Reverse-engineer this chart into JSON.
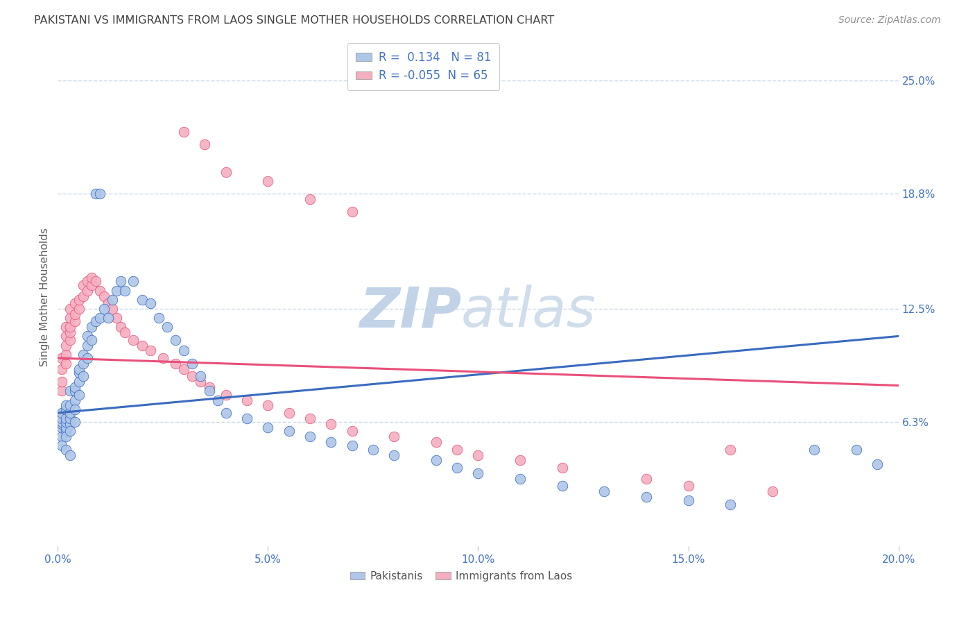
{
  "title": "PAKISTANI VS IMMIGRANTS FROM LAOS SINGLE MOTHER HOUSEHOLDS CORRELATION CHART",
  "source": "Source: ZipAtlas.com",
  "ylabel": "Single Mother Households",
  "xlim": [
    0.0,
    0.2
  ],
  "ylim": [
    -0.005,
    0.268
  ],
  "xtick_labels": [
    "0.0%",
    "5.0%",
    "10.0%",
    "15.0%",
    "20.0%"
  ],
  "xtick_vals": [
    0.0,
    0.05,
    0.1,
    0.15,
    0.2
  ],
  "ytick_labels": [
    "6.3%",
    "12.5%",
    "18.8%",
    "25.0%"
  ],
  "ytick_vals": [
    0.063,
    0.125,
    0.188,
    0.25
  ],
  "blue_color": "#aec6e8",
  "pink_color": "#f4afc0",
  "blue_line_color": "#3a6bbf",
  "pink_line_color": "#e8507a",
  "title_color": "#404040",
  "source_color": "#909090",
  "axis_label_color": "#606060",
  "tick_color": "#4472c4",
  "grid_color": "#c8d8ea",
  "watermark_color": "#ccd8e8",
  "blue_trendline_x": [
    0.0,
    0.2
  ],
  "blue_trendline_y": [
    0.068,
    0.11
  ],
  "pink_trendline_x": [
    0.0,
    0.2
  ],
  "pink_trendline_y": [
    0.098,
    0.083
  ],
  "blue_R": "0.134",
  "blue_N": "81",
  "pink_R": "-0.055",
  "pink_N": "65",
  "blue_points_x": [
    0.001,
    0.001,
    0.001,
    0.001,
    0.001,
    0.001,
    0.001,
    0.002,
    0.002,
    0.002,
    0.002,
    0.002,
    0.002,
    0.002,
    0.002,
    0.003,
    0.003,
    0.003,
    0.003,
    0.003,
    0.003,
    0.003,
    0.004,
    0.004,
    0.004,
    0.004,
    0.004,
    0.005,
    0.005,
    0.005,
    0.005,
    0.006,
    0.006,
    0.006,
    0.007,
    0.007,
    0.007,
    0.008,
    0.008,
    0.009,
    0.009,
    0.01,
    0.01,
    0.011,
    0.012,
    0.013,
    0.014,
    0.015,
    0.016,
    0.018,
    0.02,
    0.022,
    0.024,
    0.026,
    0.028,
    0.03,
    0.032,
    0.034,
    0.036,
    0.038,
    0.04,
    0.045,
    0.05,
    0.055,
    0.06,
    0.065,
    0.07,
    0.075,
    0.08,
    0.09,
    0.095,
    0.1,
    0.11,
    0.12,
    0.13,
    0.14,
    0.15,
    0.16,
    0.18,
    0.19,
    0.195
  ],
  "blue_points_y": [
    0.055,
    0.06,
    0.062,
    0.063,
    0.065,
    0.068,
    0.05,
    0.058,
    0.06,
    0.063,
    0.065,
    0.07,
    0.072,
    0.055,
    0.048,
    0.062,
    0.065,
    0.068,
    0.072,
    0.08,
    0.058,
    0.045,
    0.075,
    0.08,
    0.082,
    0.07,
    0.063,
    0.085,
    0.09,
    0.092,
    0.078,
    0.095,
    0.1,
    0.088,
    0.105,
    0.11,
    0.098,
    0.115,
    0.108,
    0.188,
    0.118,
    0.188,
    0.12,
    0.125,
    0.12,
    0.13,
    0.135,
    0.14,
    0.135,
    0.14,
    0.13,
    0.128,
    0.12,
    0.115,
    0.108,
    0.102,
    0.095,
    0.088,
    0.08,
    0.075,
    0.068,
    0.065,
    0.06,
    0.058,
    0.055,
    0.052,
    0.05,
    0.048,
    0.045,
    0.042,
    0.038,
    0.035,
    0.032,
    0.028,
    0.025,
    0.022,
    0.02,
    0.018,
    0.048,
    0.048,
    0.04
  ],
  "pink_points_x": [
    0.001,
    0.001,
    0.001,
    0.001,
    0.002,
    0.002,
    0.002,
    0.002,
    0.002,
    0.003,
    0.003,
    0.003,
    0.003,
    0.003,
    0.004,
    0.004,
    0.004,
    0.005,
    0.005,
    0.006,
    0.006,
    0.007,
    0.007,
    0.008,
    0.008,
    0.009,
    0.01,
    0.011,
    0.012,
    0.013,
    0.014,
    0.015,
    0.016,
    0.018,
    0.02,
    0.022,
    0.025,
    0.028,
    0.03,
    0.032,
    0.034,
    0.036,
    0.04,
    0.045,
    0.05,
    0.055,
    0.06,
    0.065,
    0.07,
    0.08,
    0.09,
    0.095,
    0.1,
    0.11,
    0.12,
    0.14,
    0.15,
    0.16,
    0.17,
    0.03,
    0.035,
    0.04,
    0.05,
    0.06,
    0.07
  ],
  "pink_points_y": [
    0.08,
    0.085,
    0.092,
    0.098,
    0.095,
    0.1,
    0.105,
    0.11,
    0.115,
    0.108,
    0.112,
    0.115,
    0.12,
    0.125,
    0.118,
    0.122,
    0.128,
    0.125,
    0.13,
    0.132,
    0.138,
    0.135,
    0.14,
    0.138,
    0.142,
    0.14,
    0.135,
    0.132,
    0.128,
    0.125,
    0.12,
    0.115,
    0.112,
    0.108,
    0.105,
    0.102,
    0.098,
    0.095,
    0.092,
    0.088,
    0.085,
    0.082,
    0.078,
    0.075,
    0.072,
    0.068,
    0.065,
    0.062,
    0.058,
    0.055,
    0.052,
    0.048,
    0.045,
    0.042,
    0.038,
    0.032,
    0.028,
    0.048,
    0.025,
    0.222,
    0.215,
    0.2,
    0.195,
    0.185,
    0.178
  ]
}
